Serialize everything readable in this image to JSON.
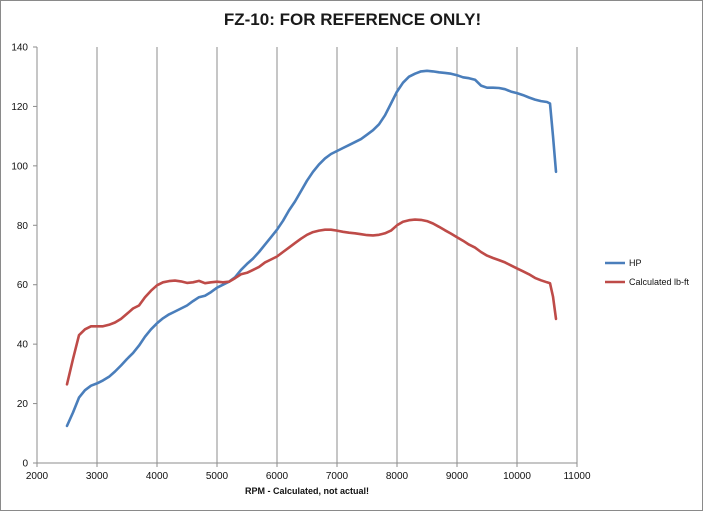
{
  "chart_data": {
    "type": "line",
    "title": "FZ-10:  FOR REFERENCE ONLY!",
    "xlabel": "RPM - Calculated, not actual!",
    "ylabel": "",
    "xlim": [
      2000,
      11000
    ],
    "ylim": [
      0,
      140
    ],
    "xticks": [
      2000,
      3000,
      4000,
      5000,
      6000,
      7000,
      8000,
      9000,
      10000,
      11000
    ],
    "yticks": [
      0,
      20,
      40,
      60,
      80,
      100,
      120,
      140
    ],
    "grid": "vertical",
    "legend_position": "right",
    "series": [
      {
        "name": "HP",
        "color": "#4a7ebb",
        "points": [
          [
            2500,
            12.5
          ],
          [
            2600,
            17
          ],
          [
            2700,
            22
          ],
          [
            2800,
            24.5
          ],
          [
            2900,
            26
          ],
          [
            3000,
            26.8
          ],
          [
            3100,
            27.8
          ],
          [
            3200,
            29
          ],
          [
            3300,
            30.8
          ],
          [
            3400,
            32.8
          ],
          [
            3500,
            35
          ],
          [
            3600,
            37
          ],
          [
            3700,
            39.5
          ],
          [
            3800,
            42.5
          ],
          [
            3900,
            45
          ],
          [
            4000,
            47
          ],
          [
            4100,
            48.7
          ],
          [
            4200,
            50
          ],
          [
            4300,
            51
          ],
          [
            4400,
            52
          ],
          [
            4500,
            53
          ],
          [
            4600,
            54.5
          ],
          [
            4700,
            55.8
          ],
          [
            4800,
            56.3
          ],
          [
            4900,
            57.5
          ],
          [
            5000,
            59
          ],
          [
            5100,
            60
          ],
          [
            5200,
            61
          ],
          [
            5300,
            62.5
          ],
          [
            5400,
            65
          ],
          [
            5500,
            67
          ],
          [
            5600,
            68.8
          ],
          [
            5700,
            71
          ],
          [
            5800,
            73.5
          ],
          [
            5900,
            76
          ],
          [
            6000,
            78.5
          ],
          [
            6100,
            81.5
          ],
          [
            6200,
            85
          ],
          [
            6300,
            88
          ],
          [
            6400,
            91.5
          ],
          [
            6500,
            95
          ],
          [
            6600,
            98
          ],
          [
            6700,
            100.5
          ],
          [
            6800,
            102.5
          ],
          [
            6900,
            104
          ],
          [
            7000,
            105
          ],
          [
            7100,
            106
          ],
          [
            7200,
            107
          ],
          [
            7300,
            108
          ],
          [
            7400,
            109
          ],
          [
            7500,
            110.5
          ],
          [
            7600,
            112
          ],
          [
            7700,
            114
          ],
          [
            7800,
            117
          ],
          [
            7900,
            121
          ],
          [
            8000,
            125
          ],
          [
            8100,
            128
          ],
          [
            8200,
            130
          ],
          [
            8300,
            131
          ],
          [
            8400,
            131.8
          ],
          [
            8500,
            132
          ],
          [
            8600,
            131.8
          ],
          [
            8700,
            131.5
          ],
          [
            8800,
            131.3
          ],
          [
            8900,
            131
          ],
          [
            9000,
            130.5
          ],
          [
            9100,
            129.8
          ],
          [
            9200,
            129.5
          ],
          [
            9300,
            129
          ],
          [
            9400,
            127
          ],
          [
            9500,
            126.3
          ],
          [
            9600,
            126.3
          ],
          [
            9700,
            126.2
          ],
          [
            9800,
            125.8
          ],
          [
            9900,
            125
          ],
          [
            10000,
            124.5
          ],
          [
            10100,
            123.8
          ],
          [
            10200,
            123
          ],
          [
            10300,
            122.3
          ],
          [
            10400,
            121.8
          ],
          [
            10500,
            121.5
          ],
          [
            10550,
            121
          ],
          [
            10600,
            110
          ],
          [
            10650,
            98
          ]
        ]
      },
      {
        "name": "Calculated lb-ft",
        "color": "#be4b48",
        "points": [
          [
            2500,
            26.5
          ],
          [
            2600,
            35
          ],
          [
            2700,
            43
          ],
          [
            2800,
            45
          ],
          [
            2900,
            46
          ],
          [
            3000,
            46
          ],
          [
            3100,
            46
          ],
          [
            3200,
            46.5
          ],
          [
            3300,
            47.3
          ],
          [
            3400,
            48.5
          ],
          [
            3500,
            50.2
          ],
          [
            3600,
            52
          ],
          [
            3700,
            53
          ],
          [
            3800,
            55.8
          ],
          [
            3900,
            58
          ],
          [
            4000,
            59.8
          ],
          [
            4100,
            60.8
          ],
          [
            4200,
            61.2
          ],
          [
            4300,
            61.4
          ],
          [
            4400,
            61.1
          ],
          [
            4500,
            60.6
          ],
          [
            4600,
            60.8
          ],
          [
            4700,
            61.3
          ],
          [
            4800,
            60.5
          ],
          [
            4900,
            60.8
          ],
          [
            5000,
            61
          ],
          [
            5100,
            60.8
          ],
          [
            5200,
            61
          ],
          [
            5300,
            62.2
          ],
          [
            5400,
            63.5
          ],
          [
            5500,
            64
          ],
          [
            5600,
            65
          ],
          [
            5700,
            66
          ],
          [
            5800,
            67.5
          ],
          [
            5900,
            68.5
          ],
          [
            6000,
            69.5
          ],
          [
            6100,
            71
          ],
          [
            6200,
            72.5
          ],
          [
            6300,
            74
          ],
          [
            6400,
            75.5
          ],
          [
            6500,
            76.8
          ],
          [
            6600,
            77.7
          ],
          [
            6700,
            78.2
          ],
          [
            6800,
            78.5
          ],
          [
            6900,
            78.5
          ],
          [
            7000,
            78.2
          ],
          [
            7100,
            77.8
          ],
          [
            7200,
            77.5
          ],
          [
            7300,
            77.3
          ],
          [
            7400,
            77
          ],
          [
            7500,
            76.7
          ],
          [
            7600,
            76.6
          ],
          [
            7700,
            76.8
          ],
          [
            7800,
            77.3
          ],
          [
            7900,
            78.2
          ],
          [
            8000,
            80
          ],
          [
            8100,
            81.2
          ],
          [
            8200,
            81.7
          ],
          [
            8300,
            81.9
          ],
          [
            8400,
            81.8
          ],
          [
            8500,
            81.4
          ],
          [
            8600,
            80.6
          ],
          [
            8700,
            79.5
          ],
          [
            8800,
            78.3
          ],
          [
            8900,
            77.2
          ],
          [
            9000,
            76
          ],
          [
            9100,
            74.8
          ],
          [
            9200,
            73.5
          ],
          [
            9300,
            72.5
          ],
          [
            9400,
            71
          ],
          [
            9500,
            69.8
          ],
          [
            9600,
            69
          ],
          [
            9700,
            68.3
          ],
          [
            9800,
            67.5
          ],
          [
            9900,
            66.5
          ],
          [
            10000,
            65.5
          ],
          [
            10100,
            64.5
          ],
          [
            10200,
            63.5
          ],
          [
            10300,
            62.3
          ],
          [
            10400,
            61.5
          ],
          [
            10500,
            60.8
          ],
          [
            10550,
            60.5
          ],
          [
            10600,
            56
          ],
          [
            10650,
            48.5
          ]
        ]
      }
    ]
  }
}
